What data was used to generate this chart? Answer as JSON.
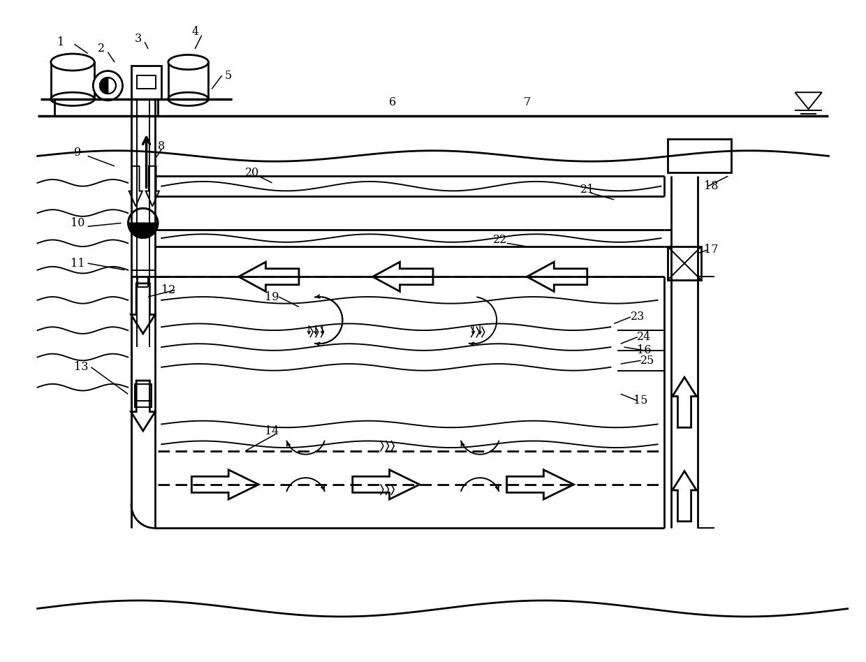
{
  "bg_color": "#ffffff",
  "line_color": "#000000",
  "lw": 1.5,
  "lw2": 2.0,
  "lw3": 2.5,
  "fig_width": 12.4,
  "fig_height": 9.48
}
